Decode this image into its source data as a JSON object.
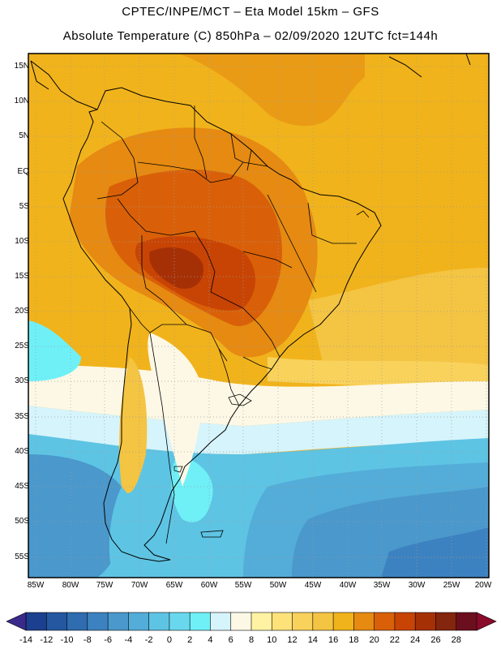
{
  "title": {
    "line1": "CPTEC/INPE/MCT –  Eta Model 15km – GFS",
    "line2": "Absolute Temperature (C) 850hPa – 02/09/2020 12UTC fct=144h"
  },
  "map": {
    "region": "South America",
    "latitude_labels": [
      "15N",
      "10N",
      "5N",
      "EQ",
      "5S",
      "10S",
      "15S",
      "20S",
      "25S",
      "30S",
      "35S",
      "40S",
      "45S",
      "50S",
      "55S"
    ],
    "longitude_labels": [
      "85W",
      "80W",
      "75W",
      "70W",
      "65W",
      "60W",
      "55W",
      "50W",
      "45W",
      "40W",
      "35W",
      "30W",
      "25W",
      "20W"
    ]
  },
  "colorbar": {
    "labels": [
      "-14",
      "-12",
      "-10",
      "-8",
      "-6",
      "-4",
      "-2",
      "0",
      "2",
      "4",
      "6",
      "8",
      "10",
      "12",
      "14",
      "16",
      "18",
      "20",
      "22",
      "24",
      "26",
      "28"
    ],
    "colors": [
      "#1d3f8f",
      "#2557a0",
      "#2f6cb0",
      "#3d82c0",
      "#4a98cc",
      "#53add8",
      "#5ec4e4",
      "#69d8ee",
      "#6ff0f7",
      "#d6f4fb",
      "#fdf8e6",
      "#fff3a3",
      "#fde27a",
      "#f9d25c",
      "#f4c443",
      "#f1b31b",
      "#e68a12",
      "#d96008",
      "#c84404",
      "#a63006",
      "#84250d",
      "#6b0f1e"
    ]
  }
}
